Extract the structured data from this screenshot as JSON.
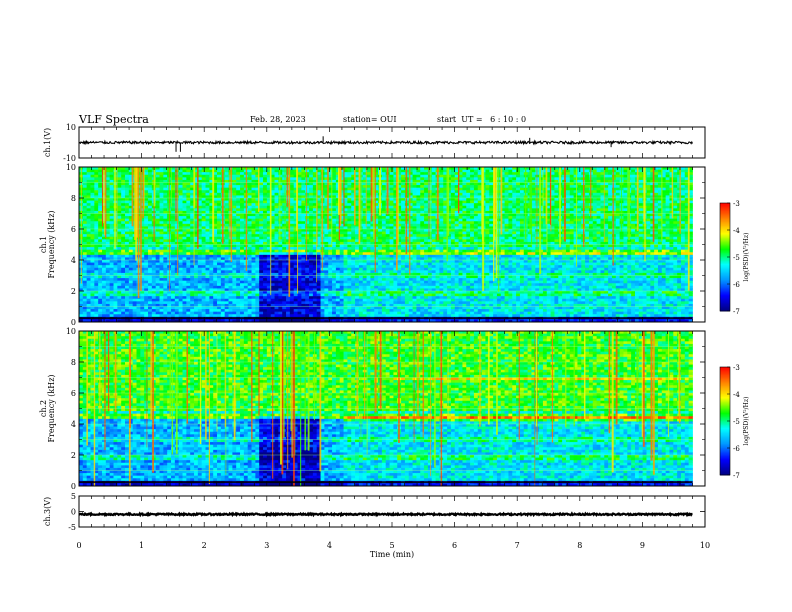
{
  "header": {
    "title": "VLF Spectra",
    "date": "Feb. 28, 2023",
    "station": "station= OUI",
    "start_ut": "start  UT =   6 : 10 : 0"
  },
  "chart_data": [
    {
      "type": "line",
      "panel": "ch1-waveform",
      "ylabel": "ch.1(V)",
      "ylim": [
        -10,
        10
      ],
      "yticks": [
        "10",
        "-10"
      ],
      "x_range_min": [
        0,
        10
      ],
      "baseline_v": 0,
      "noise_band_v": 0.8,
      "spikes": [
        {
          "t": 1.55,
          "v": -6
        },
        {
          "t": 1.62,
          "v": -6
        },
        {
          "t": 3.9,
          "v": 4
        },
        {
          "t": 7.2,
          "v": 3
        },
        {
          "t": 8.5,
          "v": -3
        }
      ]
    },
    {
      "type": "heatmap",
      "panel": "ch1-spectrogram",
      "ylabel": "ch.1\nFrequency (kHz)",
      "ylim": [
        0,
        10
      ],
      "yticks": [
        "0",
        "2",
        "4",
        "6",
        "8",
        "10"
      ],
      "x_range_min": [
        0,
        9.8
      ],
      "colorbar": {
        "label": "log(PSD)(V²/Hz)",
        "range": [
          -7,
          -3
        ],
        "ticks": [
          "-3",
          "-4",
          "-5",
          "-6",
          "-7"
        ]
      }
    },
    {
      "type": "heatmap",
      "panel": "ch2-spectrogram",
      "ylabel": "ch.2\nFrequency (kHz)",
      "ylim": [
        0,
        10
      ],
      "yticks": [
        "0",
        "2",
        "4",
        "6",
        "8",
        "10"
      ],
      "x_range_min": [
        0,
        9.8
      ],
      "colorbar": {
        "label": "log(PSD)(V²/Hz)",
        "range": [
          -7,
          -3
        ],
        "ticks": [
          "-3",
          "-4",
          "-5",
          "-6",
          "-7"
        ]
      }
    },
    {
      "type": "line",
      "panel": "ch3-waveform",
      "ylabel": "ch.3(V)",
      "ylim": [
        -5,
        5
      ],
      "yticks": [
        "5",
        "0",
        "-5"
      ],
      "x_range_min": [
        0,
        10
      ],
      "baseline_v": -0.9,
      "noise_band_v": 0.25
    }
  ],
  "x_axis": {
    "label": "Time (min)",
    "ticks": [
      "0",
      "1",
      "2",
      "3",
      "4",
      "5",
      "6",
      "7",
      "8",
      "9",
      "10"
    ],
    "range": [
      0,
      10
    ]
  },
  "colors": {
    "colormap": [
      "#000080",
      "#0000ff",
      "#0096ff",
      "#00ffff",
      "#00ff00",
      "#ffff00",
      "#ff8000",
      "#ff0000",
      "#ffffff"
    ]
  }
}
